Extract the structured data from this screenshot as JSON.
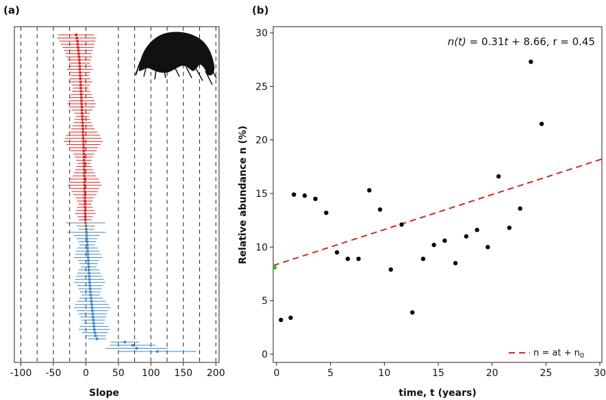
{
  "chart_data": [
    {
      "panel": "(a)",
      "type": "scatter",
      "subtype": "ranked slopes with horizontal error bars",
      "xlabel": "Slope",
      "xlim": [
        -110,
        205
      ],
      "xticks": [
        -100,
        -50,
        0,
        50,
        100,
        150,
        200
      ],
      "x_tick_labels": [
        "-100",
        "-50",
        "0",
        "50",
        "100",
        "150",
        "200"
      ],
      "gridlines_x": [
        -100,
        -75,
        -50,
        -25,
        0,
        50,
        75,
        100,
        125,
        150,
        175,
        200
      ],
      "grid": "vertical dashed lines",
      "icon": "amphipod-silhouette",
      "colors": {
        "negative": "#dd2222",
        "neutral": "#777777",
        "positive": "#3a86c8"
      },
      "series": [
        {
          "group": "negative",
          "slopes": [
            -15,
            -14,
            -13,
            -12.5,
            -12,
            -11.5,
            -11,
            -10.5,
            -10,
            -9.8,
            -9.5,
            -9.2,
            -9,
            -8.8,
            -8.5,
            -8.2,
            -8,
            -7.8,
            -7.5,
            -7.2,
            -7,
            -6.8,
            -6.5,
            -6.2,
            -6,
            -5.8,
            -5.5,
            -5.2,
            -5,
            -4.8,
            -4.6,
            -4.4,
            -4.2,
            -4,
            -3.8,
            -3.6,
            -3.4,
            -3.2,
            -3,
            -2.9,
            -2.8,
            -2.7,
            -2.6,
            -2.5,
            -2.4,
            -2.3,
            -2.2,
            -2.1,
            -2,
            -1.9,
            -1.8,
            -1.7,
            -1.6,
            -1.5,
            -1.4,
            -1.3,
            -1.2,
            -1.1,
            -1,
            -0.9
          ],
          "half_widths": [
            28,
            30,
            28,
            26,
            24,
            22,
            20,
            20,
            18,
            16,
            18,
            20,
            16,
            14,
            16,
            18,
            14,
            12,
            14,
            16,
            18,
            20,
            22,
            20,
            16,
            12,
            10,
            12,
            14,
            16,
            18,
            22,
            26,
            28,
            30,
            26,
            22,
            20,
            16,
            14,
            12,
            10,
            12,
            14,
            16,
            18,
            22,
            24,
            26,
            22,
            20,
            18,
            14,
            12,
            10,
            12,
            14,
            16,
            12,
            10
          ]
        },
        {
          "group": "neutral",
          "slopes": [
            -0.5,
            0.2,
            0.6
          ],
          "half_widths": [
            30,
            14,
            12
          ]
        },
        {
          "group": "positive",
          "slopes": [
            1,
            1.3,
            1.6,
            1.9,
            2.2,
            2.5,
            2.8,
            3.1,
            3.4,
            3.7,
            4,
            4.3,
            4.6,
            4.9,
            5.2,
            5.5,
            5.8,
            6.2,
            6.6,
            7,
            7.5,
            8,
            8.5,
            9,
            9.5,
            10,
            10.5,
            11,
            11.5,
            12,
            12.5,
            13,
            14,
            15,
            17,
            60,
            72,
            78,
            110
          ],
          "half_widths": [
            30,
            20,
            16,
            14,
            12,
            16,
            18,
            20,
            22,
            16,
            14,
            12,
            16,
            18,
            20,
            22,
            24,
            20,
            18,
            16,
            14,
            18,
            22,
            26,
            28,
            24,
            22,
            20,
            18,
            16,
            22,
            24,
            20,
            16,
            14,
            22,
            35,
            48,
            60
          ]
        }
      ]
    },
    {
      "panel": "(b)",
      "type": "scatter",
      "xlabel": "time, t (years)",
      "ylabel": "Relative abundance n (%)",
      "xlim": [
        0,
        30
      ],
      "ylim": [
        0,
        30
      ],
      "xticks": [
        0,
        5,
        10,
        15,
        20,
        25,
        30
      ],
      "yticks": [
        0,
        5,
        10,
        15,
        20,
        25,
        30
      ],
      "points": [
        {
          "x": 0.4,
          "y": 3.2
        },
        {
          "x": 1.3,
          "y": 3.4
        },
        {
          "x": 1.6,
          "y": 14.9
        },
        {
          "x": 2.6,
          "y": 14.8
        },
        {
          "x": 3.6,
          "y": 14.5
        },
        {
          "x": 4.6,
          "y": 13.2
        },
        {
          "x": 5.6,
          "y": 9.5
        },
        {
          "x": 6.6,
          "y": 8.9
        },
        {
          "x": 7.6,
          "y": 8.9
        },
        {
          "x": 8.6,
          "y": 15.3
        },
        {
          "x": 9.6,
          "y": 13.5
        },
        {
          "x": 10.6,
          "y": 7.9
        },
        {
          "x": 11.6,
          "y": 12.1
        },
        {
          "x": 12.6,
          "y": 3.9
        },
        {
          "x": 13.6,
          "y": 8.9
        },
        {
          "x": 14.6,
          "y": 10.2
        },
        {
          "x": 15.6,
          "y": 10.6
        },
        {
          "x": 16.6,
          "y": 8.5
        },
        {
          "x": 17.6,
          "y": 11.0
        },
        {
          "x": 18.6,
          "y": 11.6
        },
        {
          "x": 19.6,
          "y": 10.0
        },
        {
          "x": 20.6,
          "y": 16.6
        },
        {
          "x": 21.6,
          "y": 11.8
        },
        {
          "x": 22.6,
          "y": 13.6
        },
        {
          "x": 23.6,
          "y": 27.3
        },
        {
          "x": 24.6,
          "y": 21.5
        }
      ],
      "intercept_point": {
        "x": 0,
        "y": 8.1,
        "color": "#33bb33"
      },
      "fit": {
        "slope": 0.31,
        "intercept": 8.66,
        "color": "#dd2222",
        "style": "dashed"
      },
      "annotation": [
        "n(t)",
        " = 0.31",
        "t",
        " + 8.66, r = 0.45"
      ],
      "legend": {
        "label": "n = at + n",
        "subscript": "0",
        "position": "bottom-right"
      }
    }
  ]
}
